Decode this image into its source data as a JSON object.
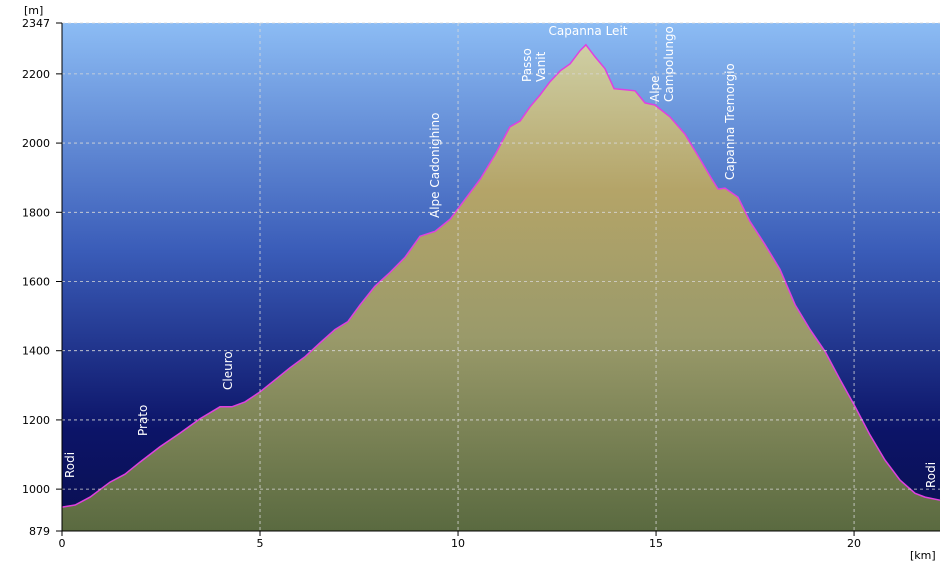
{
  "chart_data": {
    "type": "area",
    "y_label": "[m]",
    "x_label": "[km]",
    "xlim": [
      0,
      22.17
    ],
    "ylim": [
      879,
      2347
    ],
    "xticks": [
      0,
      5,
      10,
      15,
      20
    ],
    "yticks": [
      879,
      1000,
      1200,
      1400,
      1600,
      1800,
      2000,
      2200,
      2347
    ],
    "grid": true,
    "series": [
      {
        "color": "#e040e0",
        "x": [
          0,
          0.33,
          0.71,
          1.21,
          1.59,
          1.97,
          2.47,
          2.98,
          3.48,
          3.99,
          4.29,
          4.62,
          5.0,
          5.38,
          5.76,
          6.14,
          6.52,
          6.89,
          7.22,
          7.53,
          7.9,
          8.28,
          8.66,
          9.04,
          9.42,
          9.8,
          10.18,
          10.56,
          10.94,
          11.31,
          11.57,
          11.82,
          12.07,
          12.32,
          12.58,
          12.83,
          13.08,
          13.23,
          13.46,
          13.71,
          13.94,
          14.22,
          14.47,
          14.72,
          14.97,
          15.35,
          15.73,
          16.11,
          16.41,
          16.57,
          16.74,
          17.07,
          17.37,
          17.75,
          18.13,
          18.51,
          18.89,
          19.27,
          19.65,
          20.03,
          20.4,
          20.78,
          21.16,
          21.54,
          21.79,
          22.17
        ],
        "values": [
          948,
          954,
          977,
          1020,
          1043,
          1078,
          1122,
          1162,
          1203,
          1238,
          1238,
          1252,
          1281,
          1316,
          1351,
          1383,
          1423,
          1461,
          1484,
          1533,
          1586,
          1626,
          1670,
          1731,
          1745,
          1780,
          1838,
          1896,
          1968,
          2047,
          2064,
          2105,
          2139,
          2177,
          2209,
          2229,
          2267,
          2284,
          2249,
          2215,
          2157,
          2154,
          2151,
          2116,
          2110,
          2076,
          2026,
          1954,
          1896,
          1867,
          1870,
          1844,
          1774,
          1707,
          1635,
          1533,
          1461,
          1397,
          1316,
          1238,
          1157,
          1084,
          1026,
          988,
          977,
          968
        ]
      }
    ],
    "annotations": [
      [
        "Rodi"
      ],
      [
        "Prato"
      ],
      [
        "Cleuro"
      ],
      [
        "Alpe Cadonighino"
      ],
      [
        "Passo",
        "Vanit"
      ],
      [
        "Capanna Leit"
      ],
      [
        "Alpe",
        "Campolungo"
      ],
      [
        "Capanna Tremorgio"
      ],
      [
        "Rodi"
      ]
    ]
  }
}
